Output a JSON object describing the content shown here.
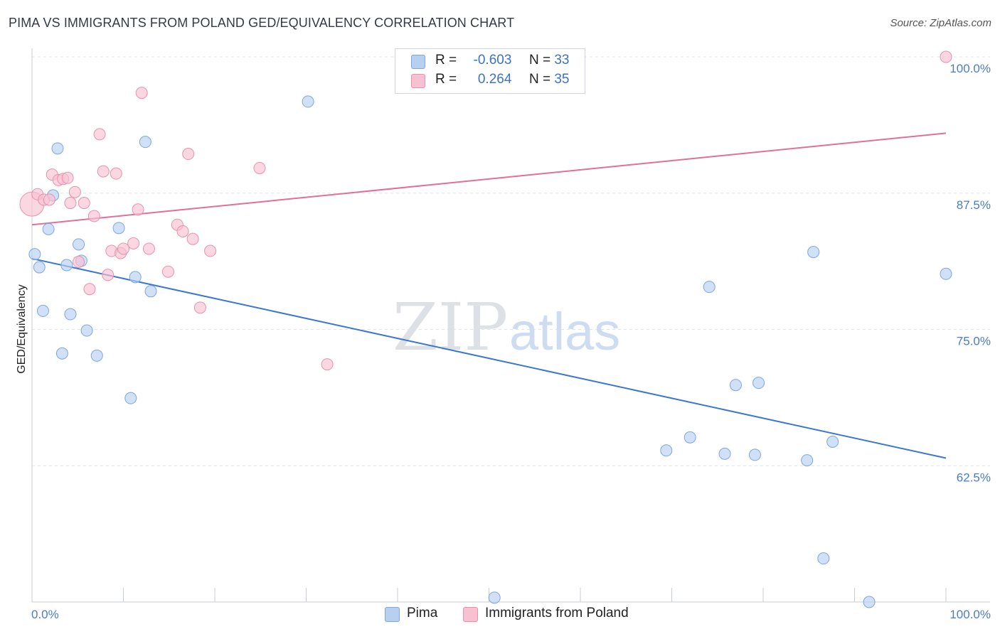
{
  "header": {
    "title": "PIMA VS IMMIGRANTS FROM POLAND GED/EQUIVALENCY CORRELATION CHART",
    "source": "Source: ZipAtlas.com"
  },
  "watermark": {
    "zip": "ZIP",
    "atlas": "atlas"
  },
  "legend": {
    "r_label": "R =",
    "n_label": "N =",
    "series": [
      {
        "r": "-0.603",
        "n": "33"
      },
      {
        "r": "0.264",
        "n": "35"
      }
    ]
  },
  "bottom_legend": [
    "Pima",
    "Immigrants from Poland"
  ],
  "colors": {
    "pima_fill": "#b7d0f2",
    "pima_stroke": "#7ea6dd",
    "pima_line": "#3a77d1",
    "poland_fill": "#f7c1d1",
    "poland_stroke": "#e891ae",
    "poland_line": "#e0709a",
    "grid": "#dfe3e8",
    "tick_text": "#4a7cc9"
  },
  "chart_data": {
    "type": "scatter",
    "title": "PIMA VS IMMIGRANTS FROM POLAND GED/EQUIVALENCY CORRELATION CHART",
    "xlabel": "",
    "ylabel": "GED/Equivalency",
    "xlim": [
      0,
      100
    ],
    "ylim": [
      50,
      100
    ],
    "x_tick_labels": [
      "0.0%",
      "100.0%"
    ],
    "y_ticks": [
      62.5,
      75.0,
      87.5,
      100.0
    ],
    "y_tick_labels": [
      "62.5%",
      "75.0%",
      "87.5%",
      "100.0%"
    ],
    "grid": true,
    "legend_position": "top-center",
    "series": [
      {
        "name": "Pima",
        "r": -0.603,
        "n": 33,
        "trend": {
          "x": [
            0,
            100
          ],
          "y": [
            81.5,
            63.2
          ]
        },
        "points": [
          [
            0.3,
            81.9
          ],
          [
            0.8,
            80.7
          ],
          [
            1.2,
            76.7
          ],
          [
            1.8,
            84.2
          ],
          [
            2.3,
            87.3
          ],
          [
            2.8,
            91.6
          ],
          [
            3.3,
            72.8
          ],
          [
            3.8,
            80.9
          ],
          [
            4.2,
            76.4
          ],
          [
            5.1,
            82.8
          ],
          [
            5.4,
            81.3
          ],
          [
            6.0,
            74.9
          ],
          [
            7.1,
            72.6
          ],
          [
            9.5,
            84.3
          ],
          [
            10.8,
            68.7
          ],
          [
            11.3,
            79.8
          ],
          [
            12.4,
            92.2
          ],
          [
            13.0,
            78.5
          ],
          [
            30.2,
            95.9
          ],
          [
            50.6,
            50.4
          ],
          [
            69.4,
            63.9
          ],
          [
            72.0,
            65.1
          ],
          [
            74.1,
            78.9
          ],
          [
            75.8,
            63.6
          ],
          [
            77.0,
            69.9
          ],
          [
            79.1,
            63.5
          ],
          [
            79.5,
            70.1
          ],
          [
            84.8,
            63.0
          ],
          [
            85.5,
            82.1
          ],
          [
            86.6,
            54.0
          ],
          [
            87.6,
            64.7
          ],
          [
            91.6,
            50.0
          ],
          [
            100.0,
            80.1
          ]
        ]
      },
      {
        "name": "Immigrants from Poland",
        "r": 0.264,
        "n": 35,
        "trend": {
          "x": [
            0,
            100
          ],
          "y": [
            84.6,
            93.0
          ]
        },
        "points": [
          [
            0.0,
            86.5
          ],
          [
            0.6,
            87.4
          ],
          [
            1.3,
            86.9
          ],
          [
            1.9,
            86.9
          ],
          [
            2.2,
            89.2
          ],
          [
            2.9,
            88.7
          ],
          [
            3.4,
            88.8
          ],
          [
            3.9,
            88.9
          ],
          [
            4.2,
            86.6
          ],
          [
            4.7,
            87.6
          ],
          [
            5.1,
            81.2
          ],
          [
            5.7,
            86.6
          ],
          [
            6.3,
            78.7
          ],
          [
            6.8,
            85.4
          ],
          [
            7.4,
            92.9
          ],
          [
            7.8,
            89.5
          ],
          [
            8.3,
            80.0
          ],
          [
            8.7,
            82.2
          ],
          [
            9.2,
            89.3
          ],
          [
            9.7,
            82.0
          ],
          [
            10.0,
            82.4
          ],
          [
            11.1,
            82.9
          ],
          [
            11.6,
            86.0
          ],
          [
            12.0,
            96.7
          ],
          [
            12.8,
            82.4
          ],
          [
            14.9,
            80.3
          ],
          [
            15.9,
            84.6
          ],
          [
            16.5,
            84.0
          ],
          [
            17.1,
            91.1
          ],
          [
            17.6,
            83.3
          ],
          [
            18.4,
            77.0
          ],
          [
            19.5,
            82.2
          ],
          [
            24.9,
            89.8
          ],
          [
            32.3,
            71.8
          ],
          [
            100.0,
            100.0
          ]
        ]
      }
    ]
  }
}
